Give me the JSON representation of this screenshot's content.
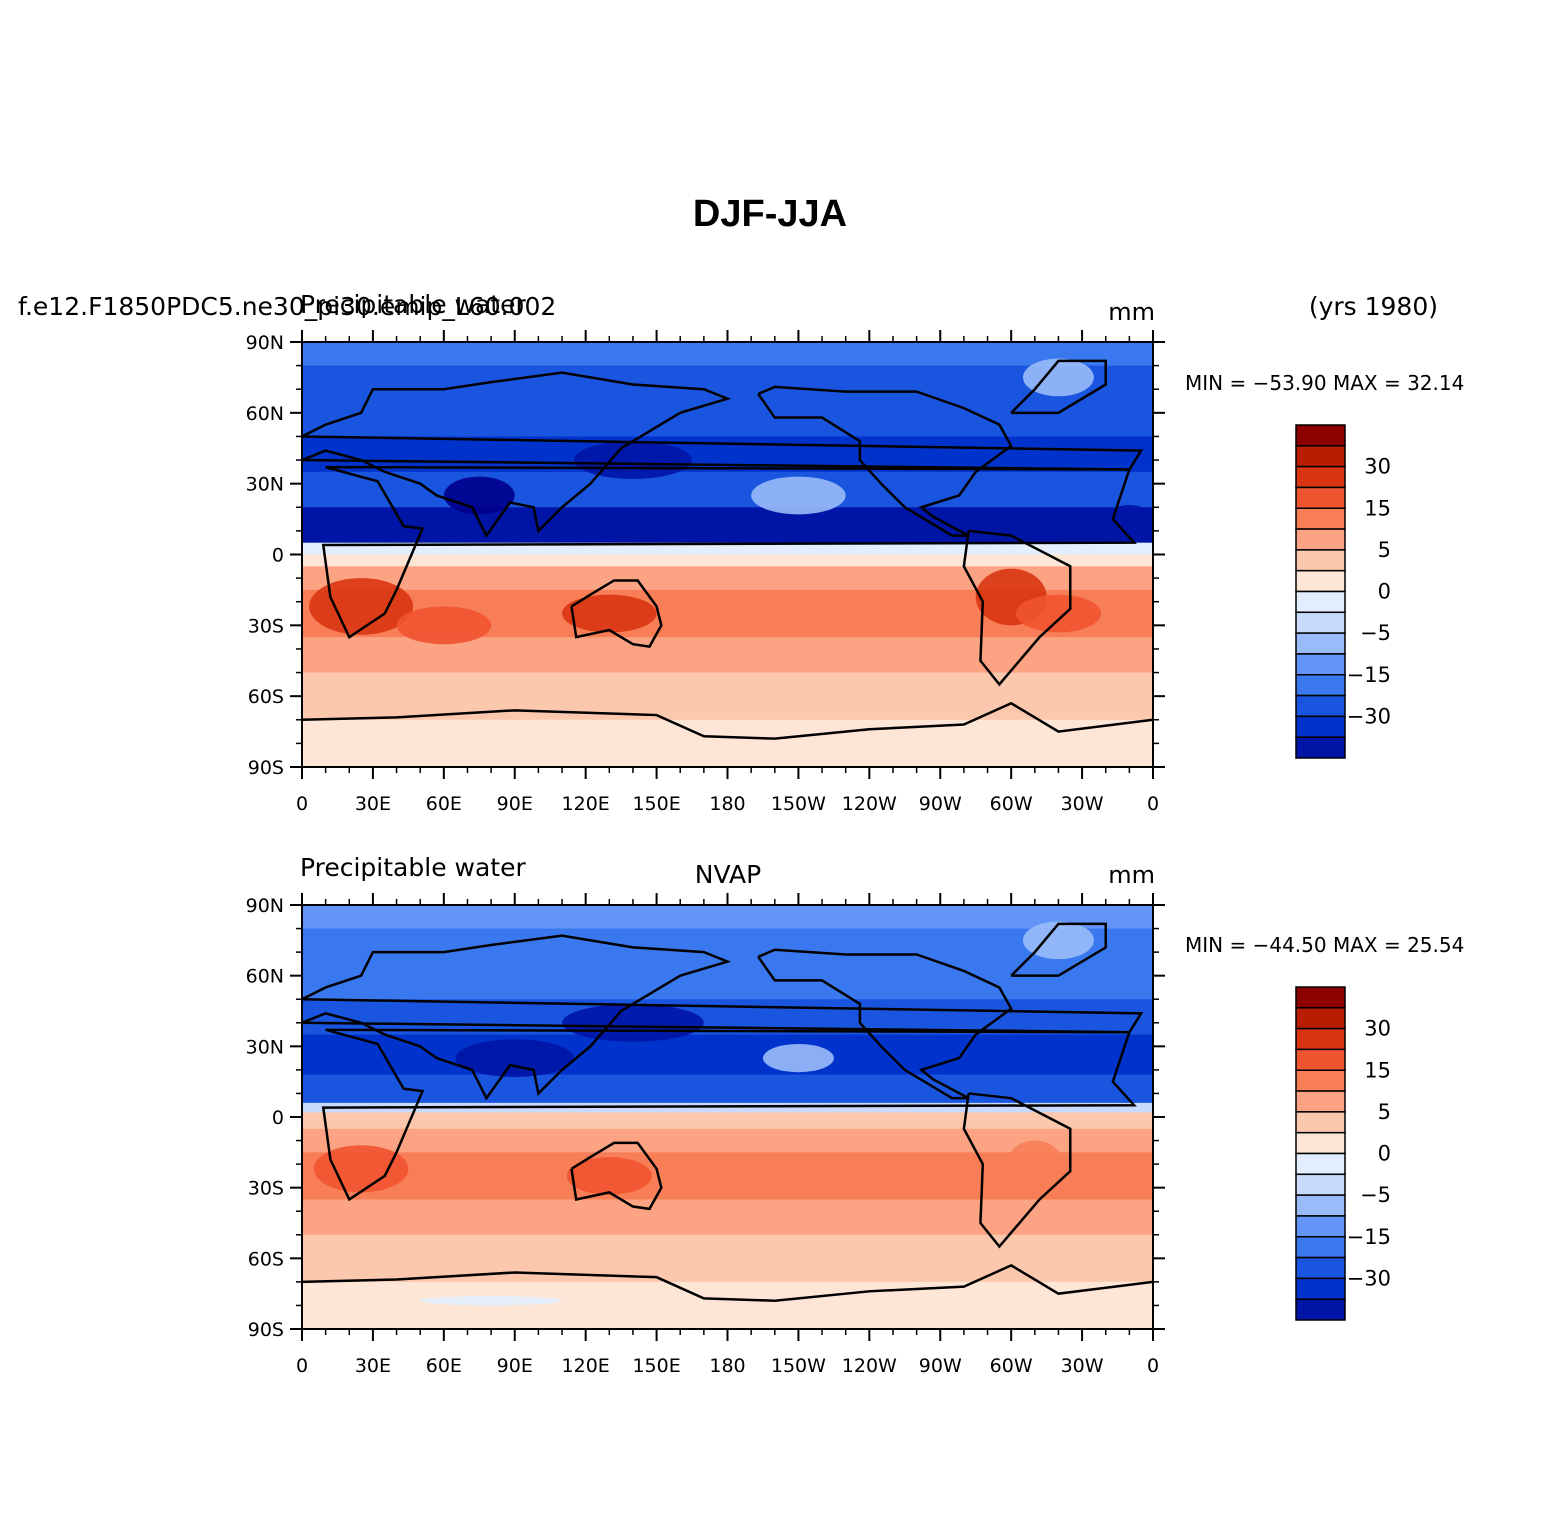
{
  "figure": {
    "title": "DJF-JJA",
    "case_label": "f.e12.F1850PDC5.ne30_pi30.emip_L60.002",
    "years_label": "(yrs 1980)"
  },
  "colors": {
    "levels": [
      "#00008c",
      "#0015a6",
      "#0033cc",
      "#1a55e0",
      "#3a78f0",
      "#6394f7",
      "#9abbf9",
      "#c8dafc",
      "#e2eefd",
      "#fde6d6",
      "#fcc8ad",
      "#fba383",
      "#f77e57",
      "#ef5430",
      "#d93512",
      "#b81c02",
      "#8c0000"
    ]
  },
  "map_axes": {
    "lat_ticks": [
      "90N",
      "60N",
      "30N",
      "0",
      "30S",
      "60S",
      "90S"
    ],
    "lon_ticks": [
      "0",
      "30E",
      "60E",
      "90E",
      "120E",
      "150E",
      "180",
      "150W",
      "120W",
      "90W",
      "60W",
      "30W",
      "0"
    ]
  },
  "panels": [
    {
      "left_label": "Precipitable water",
      "center_label": "",
      "units": "mm",
      "min_max": "MIN = −53.90  MAX =  32.14"
    },
    {
      "left_label": "Precipitable water",
      "center_label": "NVAP",
      "units": "mm",
      "min_max": "MIN = −44.50  MAX =  25.54"
    }
  ],
  "colorbar": {
    "labels": [
      "30",
      "15",
      "5",
      "0",
      "−5",
      "−15",
      "−30"
    ]
  }
}
